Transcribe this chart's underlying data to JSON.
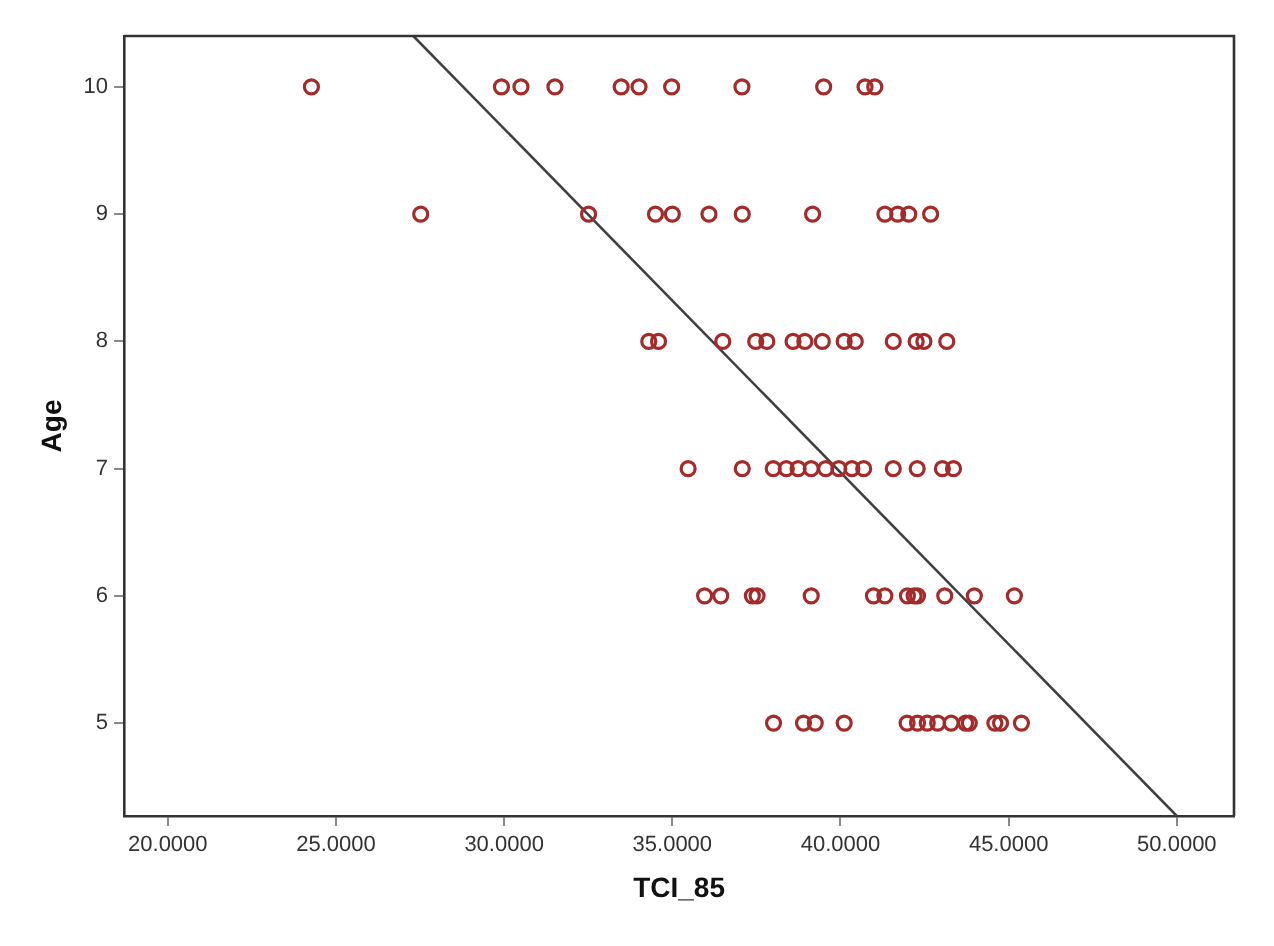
{
  "chart_data": {
    "type": "scatter",
    "xlabel": "TCI_85",
    "ylabel": "Age",
    "xlim": [
      18.7,
      51.7
    ],
    "ylim": [
      4.27,
      10.4
    ],
    "xticks": [
      {
        "value": 20,
        "label": "20.0000"
      },
      {
        "value": 25,
        "label": "25.0000"
      },
      {
        "value": 30,
        "label": "30.0000"
      },
      {
        "value": 35,
        "label": "35.0000"
      },
      {
        "value": 40,
        "label": "40.0000"
      },
      {
        "value": 45,
        "label": "45.0000"
      },
      {
        "value": 50,
        "label": "50.0000"
      }
    ],
    "yticks": [
      5,
      6,
      7,
      8,
      9,
      10
    ],
    "grid": false,
    "series": [
      {
        "color": "#a52a2a",
        "marker": "circle",
        "x": [
          24.27,
          29.92,
          30.5,
          31.51,
          33.48,
          34.01,
          34.98,
          37.07,
          39.5,
          40.73,
          41.02,
          27.52,
          32.51,
          34.5,
          35.0,
          36.09,
          37.08,
          39.17,
          41.32,
          41.7,
          42.03,
          42.68,
          34.3,
          34.59,
          36.5,
          37.48,
          37.81,
          38.59,
          38.94,
          39.46,
          40.11,
          40.44,
          41.57,
          42.25,
          42.48,
          43.16,
          35.47,
          37.08,
          38.0,
          38.39,
          38.74,
          39.13,
          39.56,
          39.95,
          40.34,
          40.69,
          41.57,
          42.28,
          43.03,
          43.36,
          35.96,
          36.44,
          37.38,
          37.52,
          39.13,
          40.98,
          41.32,
          41.99,
          42.19,
          42.29,
          43.1,
          43.98,
          45.17,
          38.01,
          38.9,
          39.25,
          40.11,
          41.98,
          42.29,
          42.58,
          42.89,
          43.29,
          43.72,
          43.83,
          44.59,
          44.76,
          45.38
        ],
        "values": [
          10,
          10,
          10,
          10,
          10,
          10,
          10,
          10,
          10,
          10,
          10,
          9,
          9,
          9,
          9,
          9,
          9,
          9,
          9,
          9,
          9,
          9,
          8,
          8,
          8,
          8,
          8,
          8,
          8,
          8,
          8,
          8,
          8,
          8,
          8,
          8,
          7,
          7,
          7,
          7,
          7,
          7,
          7,
          7,
          7,
          7,
          7,
          7,
          7,
          7,
          6,
          6,
          6,
          6,
          6,
          6,
          6,
          6,
          6,
          6,
          6,
          6,
          6,
          5,
          5,
          5,
          5,
          5,
          5,
          5,
          5,
          5,
          5,
          5,
          5,
          5,
          5
        ]
      },
      {
        "type": "line",
        "marker": "none",
        "color": "#404040",
        "x": [
          27.3,
          50.0
        ],
        "values": [
          10.4,
          4.27
        ]
      }
    ]
  }
}
